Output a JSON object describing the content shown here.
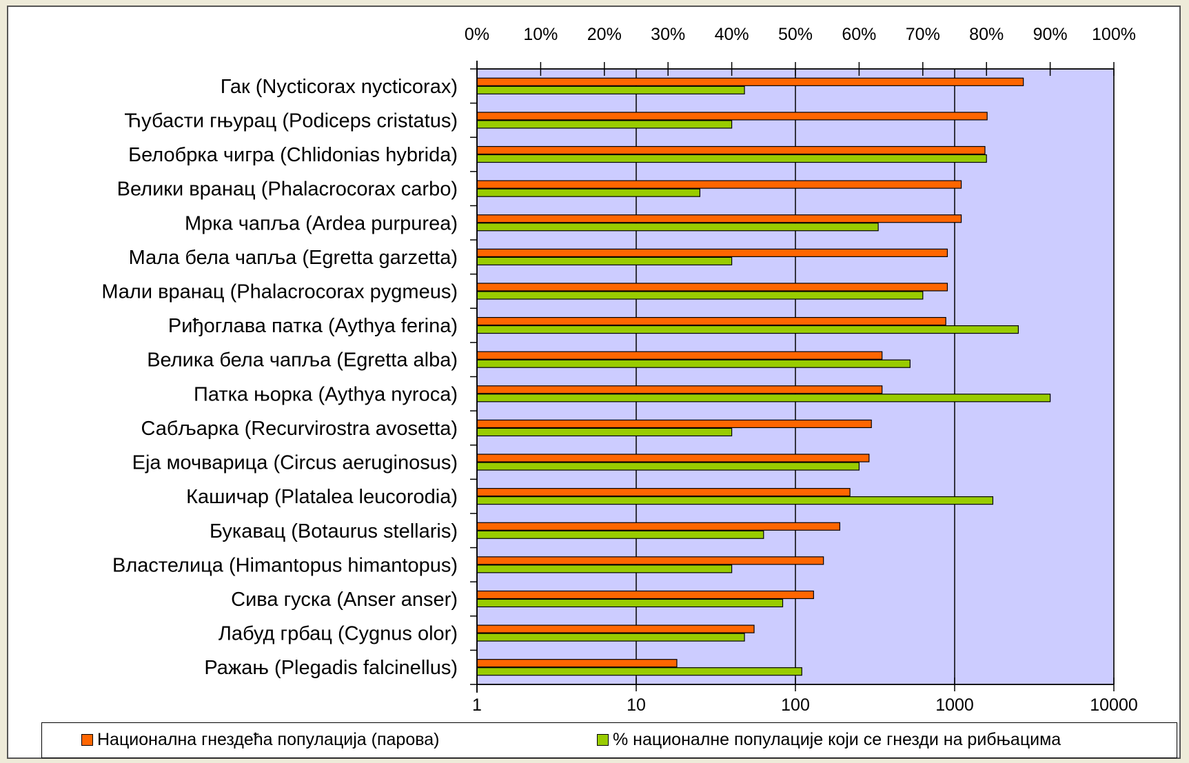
{
  "chart_data": {
    "type": "bar",
    "orientation": "horizontal",
    "categories": [
      "Гак (Nycticorax nycticorax)",
      "Ћубасти гњурац (Podiceps cristatus)",
      "Белобрка чигра (Chlidonias hybrida)",
      "Велики вранац (Phalacrocorax carbo)",
      "Мрка чапља (Ardea purpurea)",
      "Мала бела чапља (Egretta garzetta)",
      "Мали вранац (Phalacrocorax pygmeus)",
      "Риђоглава патка (Aythya ferina)",
      "Велика бела чапља (Egretta alba)",
      "Патка њорка (Aythya nyroca)",
      "Сабљарка (Recurvirostra avosetta)",
      "Еја мочварица (Circus aeruginosus)",
      "Кашичар (Platalea leucorodia)",
      "Букавац (Botaurus stellaris)",
      "Властелица (Himantopus himantopus)",
      "Сива гуска (Anser anser)",
      "Лабуд грбац (Cygnus olor)",
      "Ражањ (Plegadis falcinellus)"
    ],
    "series": [
      {
        "name": "Национална гнездећа популација (парова)",
        "axis": "bottom",
        "color": "#ff6600",
        "values": [
          2700,
          1600,
          1550,
          1100,
          1100,
          900,
          900,
          880,
          350,
          350,
          300,
          290,
          220,
          190,
          150,
          130,
          55,
          18
        ]
      },
      {
        "name": "% националне популације који се гнезди на рибњацима",
        "axis": "top",
        "color": "#99cc00",
        "values": [
          42,
          40,
          80,
          35,
          63,
          40,
          70,
          85,
          68,
          90,
          40,
          60,
          81,
          45,
          40,
          48,
          42,
          51
        ]
      }
    ],
    "x_bottom": {
      "scale": "log",
      "range": [
        1,
        10000
      ],
      "ticks": [
        1,
        10,
        100,
        1000,
        10000
      ],
      "tick_labels": [
        "1",
        "10",
        "100",
        "1000",
        "10000"
      ]
    },
    "x_top": {
      "scale": "linear",
      "range": [
        0,
        100
      ],
      "ticks": [
        0,
        10,
        20,
        30,
        40,
        50,
        60,
        70,
        80,
        90,
        100
      ],
      "tick_labels": [
        "0%",
        "10%",
        "20%",
        "30%",
        "40%",
        "50%",
        "60%",
        "70%",
        "80%",
        "90%",
        "100%"
      ]
    },
    "grid": "vertical-major",
    "plot_background": "#ccccff",
    "legend": "bottom"
  }
}
